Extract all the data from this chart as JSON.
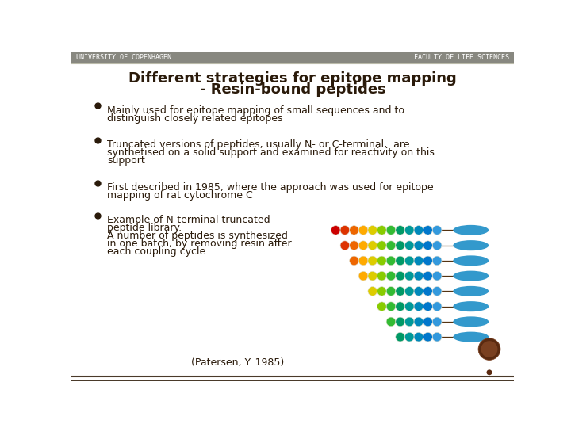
{
  "bg_color": "#ffffff",
  "header_color": "#888880",
  "header_text_color": "#ffffff",
  "header_left": "UNIVERSITY OF COPENHAGEN",
  "header_right": "FACULTY OF LIFE SCIENCES",
  "title_line1": "Different strategies for epitope mapping",
  "title_line2": "- Resin-bound peptides",
  "title_color": "#2a1a0a",
  "bullet_color": "#2a1a0a",
  "text_color": "#2a1a0a",
  "bullet1": "Mainly used for epitope mapping of small sequences and to\ndistinguish closely related epitopes",
  "bullet2": "Truncated versions of peptides, usually N- or C-terminal,  are\nsynthetised on a solid support and examined for reactivity on this\nsupport",
  "bullet3": "First described in 1985, where the approach was used for epitope\nmapping of rat cytochrome C",
  "bullet4_lines": [
    "Example of N-terminal truncated",
    "peptide library.",
    "A number of peptides is synthesized",
    "in one batch, by removing resin after",
    "each coupling cycle"
  ],
  "citation": "(Patersen, Y. 1985)",
  "bead_rows": [
    [
      "#cc0000",
      "#dd3300",
      "#ee6600",
      "#ffaa00",
      "#ddcc00",
      "#88cc00",
      "#33bb33",
      "#009966",
      "#009999",
      "#0088bb",
      "#0077cc",
      "#3399dd"
    ],
    [
      "#dd3300",
      "#ee6600",
      "#ffaa00",
      "#ddcc00",
      "#88cc00",
      "#33bb33",
      "#009966",
      "#009999",
      "#0088bb",
      "#0077cc",
      "#3399dd"
    ],
    [
      "#ee6600",
      "#ffaa00",
      "#ddcc00",
      "#88cc00",
      "#33bb33",
      "#009966",
      "#009999",
      "#0088bb",
      "#0077cc",
      "#3399dd"
    ],
    [
      "#ffaa00",
      "#ddcc00",
      "#88cc00",
      "#33bb33",
      "#009966",
      "#009999",
      "#0088bb",
      "#0077cc",
      "#3399dd"
    ],
    [
      "#ddcc00",
      "#88cc00",
      "#33bb33",
      "#009966",
      "#009999",
      "#0088bb",
      "#0077cc",
      "#3399dd"
    ],
    [
      "#88cc00",
      "#33bb33",
      "#009966",
      "#009999",
      "#0088bb",
      "#0077cc",
      "#3399dd"
    ],
    [
      "#33bb33",
      "#009966",
      "#009999",
      "#0088bb",
      "#0077cc",
      "#3399dd"
    ],
    [
      "#009966",
      "#009999",
      "#0088bb",
      "#0077cc",
      "#3399dd"
    ]
  ],
  "resin_color": "#3399cc",
  "line_color": "#553311",
  "logo_color": "#5a2a10",
  "logo_dot_color": "#5a2a10"
}
